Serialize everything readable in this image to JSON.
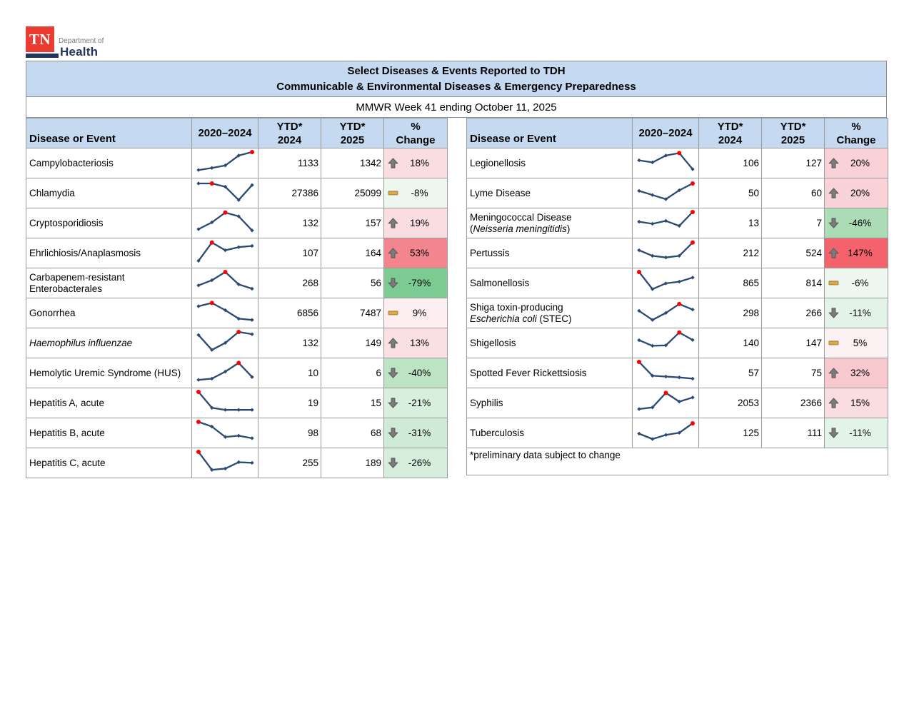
{
  "logo": {
    "tn": "TN",
    "dept": "Department of",
    "health": "Health"
  },
  "header": {
    "title_line1": "Select Diseases & Events Reported to TDH",
    "title_line2": "Communicable & Environmental Diseases & Emergency Preparedness",
    "subtitle": "MMWR Week 41 ending October 11, 2025"
  },
  "columns": {
    "disease": "Disease or Event",
    "trend": "2020–2024",
    "ytd2024": [
      "YTD*",
      "2024"
    ],
    "ytd2025": [
      "YTD*",
      "2025"
    ],
    "pct": [
      "%",
      "Change"
    ]
  },
  "footnote": "*preliminary data subject to change",
  "colors": {
    "banner_bg": "#c5d9f1",
    "border": "#9b9b9b",
    "spark": "#2b4a73",
    "dot": "#ff0000",
    "arrow": "#7b7b7b",
    "arrow_edge": "#565656",
    "flat": "#dcaa4e",
    "flat_edge": "#a87f2d"
  },
  "tables": {
    "left": {
      "rows": [
        {
          "name": [
            {
              "t": "Campylobacteriosis"
            }
          ],
          "trend": {
            "v": [
              8,
              18,
              30,
              78,
              95
            ],
            "max": 4
          },
          "ytd2024": "1133",
          "ytd2025": "1342",
          "change": {
            "dir": "up",
            "label": "18%",
            "bg": "#fadde1"
          }
        },
        {
          "name": [
            {
              "t": "Chlamydia"
            }
          ],
          "trend": {
            "v": [
              88,
              88,
              72,
              8,
              80
            ],
            "max": 1
          },
          "ytd2024": "27386",
          "ytd2025": "25099",
          "change": {
            "dir": "flat",
            "label": "-8%",
            "bg": "#edf7ef"
          }
        },
        {
          "name": [
            {
              "t": "Cryptosporidiosis"
            }
          ],
          "trend": {
            "v": [
              12,
              45,
              92,
              74,
              6
            ],
            "max": 2
          },
          "ytd2024": "132",
          "ytd2025": "157",
          "change": {
            "dir": "up",
            "label": "19%",
            "bg": "#fadde1"
          }
        },
        {
          "name": [
            {
              "t": "Ehrlichiosis/Anaplasmosis"
            }
          ],
          "trend": {
            "v": [
              4,
              92,
              55,
              70,
              76
            ],
            "max": 1
          },
          "ytd2024": "107",
          "ytd2025": "164",
          "change": {
            "dir": "up",
            "label": "53%",
            "bg": "#f2858d"
          }
        },
        {
          "name": [
            {
              "t": "Carbapenem-resistant"
            },
            {
              "br": true
            },
            {
              "t": "Enterobacterales"
            }
          ],
          "trend": {
            "v": [
              30,
              55,
              95,
              35,
              14
            ],
            "max": 2
          },
          "ytd2024": "268",
          "ytd2025": "56",
          "change": {
            "dir": "down",
            "label": "-79%",
            "bg": "#7ccb93"
          }
        },
        {
          "name": [
            {
              "t": "Gonorrhea"
            }
          ],
          "trend": {
            "v": [
              74,
              90,
              55,
              14,
              8
            ],
            "max": 1
          },
          "ytd2024": "6856",
          "ytd2025": "7487",
          "change": {
            "dir": "flat",
            "label": "9%",
            "bg": "#fdeff1"
          }
        },
        {
          "name": [
            {
              "t": "Haemophilus influenzae",
              "i": true
            }
          ],
          "trend": {
            "v": [
              80,
              8,
              42,
              95,
              84
            ],
            "max": 3
          },
          "ytd2024": "132",
          "ytd2025": "149",
          "change": {
            "dir": "up",
            "label": "13%",
            "bg": "#fbe0e3"
          }
        },
        {
          "name": [
            {
              "t": "Hemolytic Uremic Syndrome (HUS)"
            }
          ],
          "trend": {
            "v": [
              8,
              14,
              48,
              90,
              22
            ],
            "max": 3
          },
          "ytd2024": "10",
          "ytd2025": "6",
          "change": {
            "dir": "down",
            "label": "-40%",
            "bg": "#bce3c4"
          }
        },
        {
          "name": [
            {
              "t": "Hepatitis A, acute"
            }
          ],
          "trend": {
            "v": [
              95,
              18,
              8,
              8,
              8
            ],
            "max": 0
          },
          "ytd2024": "19",
          "ytd2025": "15",
          "change": {
            "dir": "down",
            "label": "-21%",
            "bg": "#d9efdd"
          }
        },
        {
          "name": [
            {
              "t": "Hepatitis B, acute"
            }
          ],
          "trend": {
            "v": [
              95,
              72,
              22,
              28,
              16
            ],
            "max": 0
          },
          "ytd2024": "98",
          "ytd2025": "68",
          "change": {
            "dir": "down",
            "label": "-31%",
            "bg": "#cfead6"
          }
        },
        {
          "name": [
            {
              "t": "Hepatitis C, acute"
            }
          ],
          "trend": {
            "v": [
              95,
              8,
              14,
              45,
              42
            ],
            "max": 0
          },
          "ytd2024": "255",
          "ytd2025": "189",
          "change": {
            "dir": "down",
            "label": "-26%",
            "bg": "#d5edda"
          }
        }
      ]
    },
    "right": {
      "rows": [
        {
          "name": [
            {
              "t": "Legionellosis"
            }
          ],
          "trend": {
            "v": [
              55,
              45,
              78,
              90,
              12
            ],
            "max": 3
          },
          "ytd2024": "106",
          "ytd2025": "127",
          "change": {
            "dir": "up",
            "label": "20%",
            "bg": "#f8d2d6"
          }
        },
        {
          "name": [
            {
              "t": "Lyme Disease"
            }
          ],
          "trend": {
            "v": [
              52,
              32,
              12,
              55,
              88
            ],
            "max": 4
          },
          "ytd2024": "50",
          "ytd2025": "60",
          "change": {
            "dir": "up",
            "label": "20%",
            "bg": "#f8d2d6"
          }
        },
        {
          "name": [
            {
              "t": "Meningococcal Disease"
            },
            {
              "br": true
            },
            {
              "t": "("
            },
            {
              "t": "Neisseria meningitidis",
              "i": true
            },
            {
              "t": ")"
            }
          ],
          "trend": {
            "v": [
              48,
              38,
              52,
              28,
              95
            ],
            "max": 4
          },
          "ytd2024": "13",
          "ytd2025": "7",
          "change": {
            "dir": "down",
            "label": "-46%",
            "bg": "#abdcb6"
          }
        },
        {
          "name": [
            {
              "t": "Pertussis"
            }
          ],
          "trend": {
            "v": [
              55,
              28,
              20,
              28,
              92
            ],
            "max": 4
          },
          "ytd2024": "212",
          "ytd2025": "524",
          "change": {
            "dir": "up",
            "label": "147%",
            "bg": "#f4636c"
          }
        },
        {
          "name": [
            {
              "t": "Salmonellosis"
            }
          ],
          "trend": {
            "v": [
              95,
              12,
              40,
              48,
              68
            ],
            "max": 0
          },
          "ytd2024": "865",
          "ytd2025": "814",
          "change": {
            "dir": "flat",
            "label": "-6%",
            "bg": "#eef7f0"
          }
        },
        {
          "name": [
            {
              "t": "Shiga toxin-producing"
            },
            {
              "br": true
            },
            {
              "t": "Escherichia coli",
              "i": true
            },
            {
              "t": " (STEC)"
            }
          ],
          "trend": {
            "v": [
              52,
              8,
              42,
              85,
              58
            ],
            "max": 3
          },
          "ytd2024": "298",
          "ytd2025": "266",
          "change": {
            "dir": "down",
            "label": "-11%",
            "bg": "#e4f3e8"
          }
        },
        {
          "name": [
            {
              "t": "Shigellosis"
            }
          ],
          "trend": {
            "v": [
              55,
              28,
              30,
              92,
              56
            ],
            "max": 3
          },
          "ytd2024": "140",
          "ytd2025": "147",
          "change": {
            "dir": "flat",
            "label": "5%",
            "bg": "#fdf2f3"
          }
        },
        {
          "name": [
            {
              "t": "Spotted Fever Rickettsiosis"
            }
          ],
          "trend": {
            "v": [
              95,
              28,
              24,
              20,
              14
            ],
            "max": 0
          },
          "ytd2024": "57",
          "ytd2025": "75",
          "change": {
            "dir": "up",
            "label": "32%",
            "bg": "#f7c8cd"
          }
        },
        {
          "name": [
            {
              "t": "Syphilis"
            }
          ],
          "trend": {
            "v": [
              12,
              20,
              90,
              48,
              68
            ],
            "max": 2
          },
          "ytd2024": "2053",
          "ytd2025": "2366",
          "change": {
            "dir": "up",
            "label": "15%",
            "bg": "#fadde1"
          }
        },
        {
          "name": [
            {
              "t": "Tuberculosis"
            }
          ],
          "trend": {
            "v": [
              38,
              12,
              32,
              42,
              88
            ],
            "max": 4
          },
          "ytd2024": "125",
          "ytd2025": "111",
          "change": {
            "dir": "down",
            "label": "-11%",
            "bg": "#e4f3e8"
          }
        }
      ]
    }
  }
}
